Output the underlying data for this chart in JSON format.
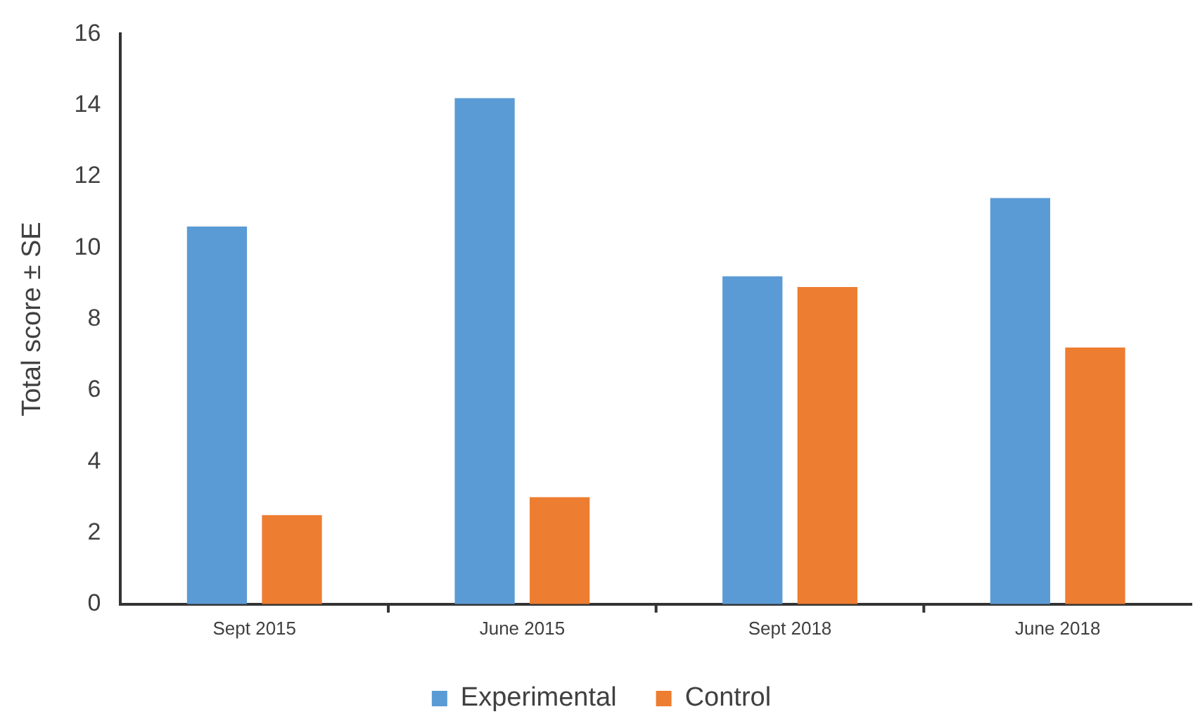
{
  "chart_data": {
    "type": "bar",
    "ylabel": "Total score ± SE",
    "categories": [
      "Sept 2015",
      "June 2015",
      "Sept 2018",
      "June 2018"
    ],
    "series": [
      {
        "name": "Experimental",
        "color": "#5b9bd5",
        "values": [
          10.6,
          14.2,
          9.2,
          11.4
        ]
      },
      {
        "name": "Control",
        "color": "#ed7d31",
        "values": [
          2.5,
          3.0,
          8.9,
          7.2
        ]
      }
    ],
    "ylim": [
      0,
      16
    ],
    "yticks": [
      0,
      2,
      4,
      6,
      8,
      10,
      12,
      14,
      16
    ],
    "grid": false,
    "legend": "bottom"
  }
}
